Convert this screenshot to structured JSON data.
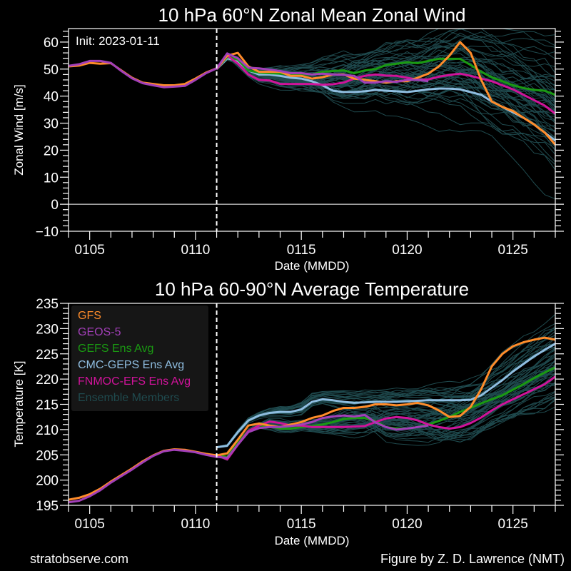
{
  "footer": {
    "left": "stratobserve.com",
    "right": "Figure by Z. D. Lawrence (NMT)"
  },
  "colors": {
    "background": "#000000",
    "axes": "#ffffff",
    "GFS": "#ff8c2a",
    "GEOS-5": "#a23fb8",
    "GEFS Ens Avg": "#1a9a12",
    "CMC-GEPS Ens Avg": "#8fbde0",
    "FNMOC-EFS Ens Avg": "#d0139a",
    "Ensemble Members": "#1f4a4e",
    "legend_bg": "#161616"
  },
  "chart_data": [
    {
      "type": "line",
      "title": "10 hPa  60°N   Zonal Mean Zonal Wind",
      "annotation": "Init: 2023-01-11",
      "xlabel": "Date (MMDD)",
      "ylabel": "Zonal  Wind   [m/s]",
      "ylim": [
        -10,
        65
      ],
      "xlim": [
        "0104",
        "0127"
      ],
      "x_ticks": [
        "0105",
        "0110",
        "0115",
        "0120",
        "0125"
      ],
      "y_ticks": [
        -10,
        0,
        10,
        20,
        30,
        40,
        50,
        60
      ],
      "init_line_x": "0111",
      "zero_line": true,
      "grid": false,
      "x_day_offset_start": 4,
      "series": [
        {
          "name": "GFS",
          "x": [
            4,
            4.5,
            5,
            5.5,
            6,
            6.5,
            7,
            7.5,
            8,
            8.5,
            9,
            9.5,
            10,
            10.5,
            11,
            11.5,
            12,
            12.5,
            13,
            13.5,
            14,
            14.5,
            15,
            15.5,
            16,
            16.5,
            17,
            17.5,
            18,
            18.5,
            19,
            19.5,
            20,
            20.5,
            21,
            21.5,
            22,
            22.5,
            23,
            23.5,
            24,
            24.5,
            25,
            25.5,
            26,
            26.5,
            27
          ],
          "values": [
            51,
            51.3,
            52.3,
            52,
            52.2,
            49.5,
            46.8,
            45,
            44.5,
            44,
            44,
            44.5,
            46.5,
            48.7,
            50.3,
            55,
            56,
            51,
            49,
            49,
            49,
            47.5,
            47.5,
            46.5,
            47,
            48,
            48,
            46.5,
            46,
            45.5,
            45,
            45.5,
            45.5,
            46.8,
            48.3,
            51,
            55,
            60,
            56,
            46,
            38,
            36,
            34.5,
            32,
            29.5,
            26.5,
            22
          ]
        },
        {
          "name": "GEOS-5",
          "x": [
            4,
            4.5,
            5,
            5.5,
            6,
            6.5,
            7,
            7.5,
            8,
            8.5,
            9,
            9.5,
            10,
            10.5,
            11,
            11.5,
            12,
            12.5,
            13,
            13.5,
            14,
            14.5,
            15,
            15.5,
            16,
            16.5,
            17,
            17.5,
            18,
            18.5,
            19,
            19.5,
            20,
            20.5,
            21
          ],
          "values": [
            51.2,
            51.8,
            53,
            53,
            52.3,
            49.3,
            46.6,
            44.8,
            44,
            43.3,
            43.5,
            43.8,
            46,
            48.5,
            50.3,
            55.8,
            54,
            50.5,
            50.3,
            49.8,
            49.3,
            48.5,
            48.5,
            48,
            48.3,
            48,
            47.8,
            47.5,
            45,
            45,
            45.5,
            45.3,
            46,
            46,
            45.5
          ]
        },
        {
          "name": "GEFS Ens Avg",
          "x": [
            11,
            11.5,
            12,
            12.5,
            13,
            13.5,
            14,
            14.5,
            15,
            15.5,
            16,
            16.5,
            17,
            17.5,
            18,
            18.5,
            19,
            19.5,
            20,
            20.5,
            21,
            21.5,
            22,
            22.5,
            23,
            23.5,
            24,
            24.5,
            25,
            25.5,
            26,
            26.5,
            27
          ],
          "values": [
            50,
            54.5,
            53.5,
            49.5,
            48.7,
            48.5,
            48.3,
            48.2,
            48.1,
            48,
            49,
            49.3,
            49.5,
            48.5,
            49.5,
            50,
            51.5,
            52,
            52.5,
            52.2,
            53,
            53.8,
            53.8,
            53.8,
            51.5,
            49,
            47,
            45.5,
            44,
            43,
            42.3,
            42,
            40.5
          ]
        },
        {
          "name": "CMC-GEPS Ens Avg",
          "x": [
            11,
            11.5,
            12,
            12.5,
            13,
            13.5,
            14,
            14.5,
            15,
            15.5,
            16,
            16.5,
            17,
            17.5,
            18,
            18.5,
            19,
            19.5,
            20,
            20.5,
            21,
            21.5,
            22,
            22.5,
            23,
            23.5,
            24,
            24.5,
            25,
            25.5,
            26,
            26.5,
            27
          ],
          "values": [
            50,
            54,
            53,
            49.5,
            48,
            48,
            47.5,
            46.8,
            46.5,
            45.5,
            44,
            42,
            41.5,
            41.5,
            41.8,
            42.3,
            42,
            41.8,
            41.5,
            42,
            42.5,
            42.8,
            42.8,
            42.5,
            41.5,
            40.5,
            38,
            36,
            34,
            32,
            29.5,
            26.5,
            23.5
          ]
        },
        {
          "name": "FNMOC-EFS Ens Avg",
          "x": [
            11,
            11.5,
            12,
            12.5,
            13,
            13.5,
            14,
            14.5,
            15,
            15.5,
            16,
            16.5,
            17,
            17.5,
            18,
            18.5,
            19,
            19.5,
            20,
            20.5,
            21,
            21.5,
            22,
            22.5,
            23,
            23.5,
            24,
            24.5,
            25,
            25.5,
            26,
            26.5,
            27
          ],
          "values": [
            50,
            55,
            52,
            48,
            46,
            45.8,
            44.5,
            44.5,
            44.5,
            44.5,
            44.2,
            44.4,
            45,
            46.5,
            47.5,
            48,
            47.6,
            47.5,
            46.8,
            46,
            46.2,
            47.2,
            47.8,
            48.3,
            47.5,
            46.5,
            45.5,
            44,
            42.5,
            40.5,
            38.5,
            36.5,
            33.5
          ]
        }
      ],
      "ensemble_members": {
        "count": 60,
        "spread_at_end": [
          -5,
          62
        ]
      }
    },
    {
      "type": "line",
      "title": "10 hPa  60-90°N Average Temperature",
      "xlabel": "Date (MMDD)",
      "ylabel": "Temperature  [K]",
      "ylim": [
        195,
        235
      ],
      "xlim": [
        "0104",
        "0127"
      ],
      "x_ticks": [
        "0105",
        "0110",
        "0115",
        "0120",
        "0125"
      ],
      "y_ticks": [
        195,
        200,
        205,
        210,
        215,
        220,
        225,
        230,
        235
      ],
      "init_line_x": "0111",
      "grid": false,
      "legend": {
        "placement": "top-left",
        "entries": [
          "GFS",
          "GEOS-5",
          "GEFS Ens Avg",
          "CMC-GEPS Ens Avg",
          "FNMOC-EFS Ens Avg",
          "Ensemble Members"
        ]
      },
      "series": [
        {
          "name": "GFS",
          "x": [
            4,
            4.5,
            5,
            5.5,
            6,
            6.5,
            7,
            7.5,
            8,
            8.5,
            9,
            9.5,
            10,
            10.5,
            11,
            11.5,
            12,
            12.5,
            13,
            13.5,
            14,
            14.5,
            15,
            15.5,
            16,
            16.5,
            17,
            17.5,
            18,
            18.5,
            19,
            19.5,
            20,
            20.5,
            21,
            21.5,
            22,
            22.5,
            23,
            23.5,
            24,
            24.5,
            25,
            25.5,
            26,
            26.5,
            27
          ],
          "values": [
            196.1,
            196.5,
            197.2,
            198.3,
            199.7,
            201,
            202.3,
            203.7,
            204.9,
            205.8,
            206.1,
            206,
            205.6,
            205.2,
            204.9,
            205.3,
            208,
            210.8,
            211.2,
            210.8,
            210.5,
            211,
            211.5,
            212.3,
            212.8,
            213.7,
            214.3,
            214.3,
            214.5,
            215,
            215,
            214.8,
            215,
            215.3,
            214.8,
            213.8,
            212.5,
            212.7,
            214.5,
            218,
            222.5,
            225,
            226.5,
            227.3,
            227.8,
            228.2,
            227.8
          ]
        },
        {
          "name": "GEOS-5",
          "x": [
            4,
            4.5,
            5,
            5.5,
            6,
            6.5,
            7,
            7.5,
            8,
            8.5,
            9,
            9.5,
            10,
            10.5,
            11,
            11.5,
            12,
            12.5,
            13,
            13.5,
            14,
            14.5,
            15,
            15.5,
            16,
            16.5,
            17,
            17.5,
            18,
            18.5,
            19,
            19.5,
            20,
            20.5,
            21
          ],
          "values": [
            195.6,
            195.9,
            196.8,
            198,
            199.5,
            200.8,
            202.1,
            203.5,
            204.8,
            205.7,
            206,
            205.8,
            205.5,
            205,
            204.6,
            204.4,
            207,
            209.5,
            210.3,
            210.5,
            210.5,
            210.7,
            211,
            211.5,
            212.3,
            212.6,
            212.8,
            212.6,
            212.9,
            211.4,
            210.5,
            210,
            210.2,
            210.5,
            210.8
          ]
        },
        {
          "name": "GEFS Ens Avg",
          "x": [
            11,
            11.5,
            12,
            12.5,
            13,
            13.5,
            14,
            14.5,
            15,
            15.5,
            16,
            16.5,
            17,
            17.5,
            18,
            18.5,
            19,
            19.5,
            20,
            20.5,
            21,
            21.5,
            22,
            22.5,
            23,
            23.5,
            24,
            24.5,
            25,
            25.5,
            26,
            26.5,
            27
          ],
          "values": [
            205,
            204.6,
            207.5,
            209.7,
            210.8,
            210.7,
            210.2,
            210.2,
            210.5,
            210.7,
            211,
            211.5,
            212.1,
            212.3,
            212.3,
            211.7,
            210.5,
            210.2,
            210.2,
            210.5,
            211,
            211.7,
            212.5,
            213.5,
            214.3,
            215.2,
            216,
            216.8,
            217.9,
            219,
            220.2,
            221.3,
            222.3
          ]
        },
        {
          "name": "CMC-GEPS Ens Avg",
          "x": [
            11,
            11.5,
            12,
            12.5,
            13,
            13.5,
            14,
            14.5,
            15,
            15.5,
            16,
            16.5,
            17,
            17.5,
            18,
            18.5,
            19,
            19.5,
            20,
            20.5,
            21,
            21.5,
            22,
            22.5,
            23,
            23.5,
            24,
            24.5,
            25,
            25.5,
            26,
            26.5,
            27
          ],
          "values": [
            206.5,
            206.8,
            209.5,
            211.8,
            212.8,
            213.3,
            213.5,
            213.5,
            214,
            215.5,
            216,
            215.8,
            215.5,
            215.3,
            215.4,
            215.5,
            215.5,
            215.5,
            215.6,
            215.7,
            215.8,
            215.8,
            215.8,
            215.8,
            215.9,
            216.8,
            218.3,
            219.8,
            221.5,
            223,
            224.5,
            225.8,
            227
          ]
        },
        {
          "name": "FNMOC-EFS Ens Avg",
          "x": [
            11,
            11.5,
            12,
            12.5,
            13,
            13.5,
            14,
            14.5,
            15,
            15.5,
            16,
            16.5,
            17,
            17.5,
            18,
            18.5,
            19,
            19.5,
            20,
            20.5,
            21,
            21.5,
            22,
            22.5,
            23,
            23.5,
            24,
            24.5,
            25,
            25.5,
            26,
            26.5,
            27
          ],
          "values": [
            204.9,
            204.1,
            207,
            209.7,
            210.8,
            211.6,
            211.3,
            210.8,
            210.8,
            210.5,
            210.5,
            210.5,
            210.5,
            210.6,
            210.7,
            211.5,
            212.2,
            212.5,
            212.3,
            211.8,
            211,
            210.5,
            210.2,
            210.5,
            211.3,
            212.4,
            213.8,
            215,
            216,
            217,
            218,
            219,
            220.5
          ]
        }
      ],
      "ensemble_members": {
        "count": 60,
        "spread_at_end": [
          215,
          234
        ]
      }
    }
  ]
}
